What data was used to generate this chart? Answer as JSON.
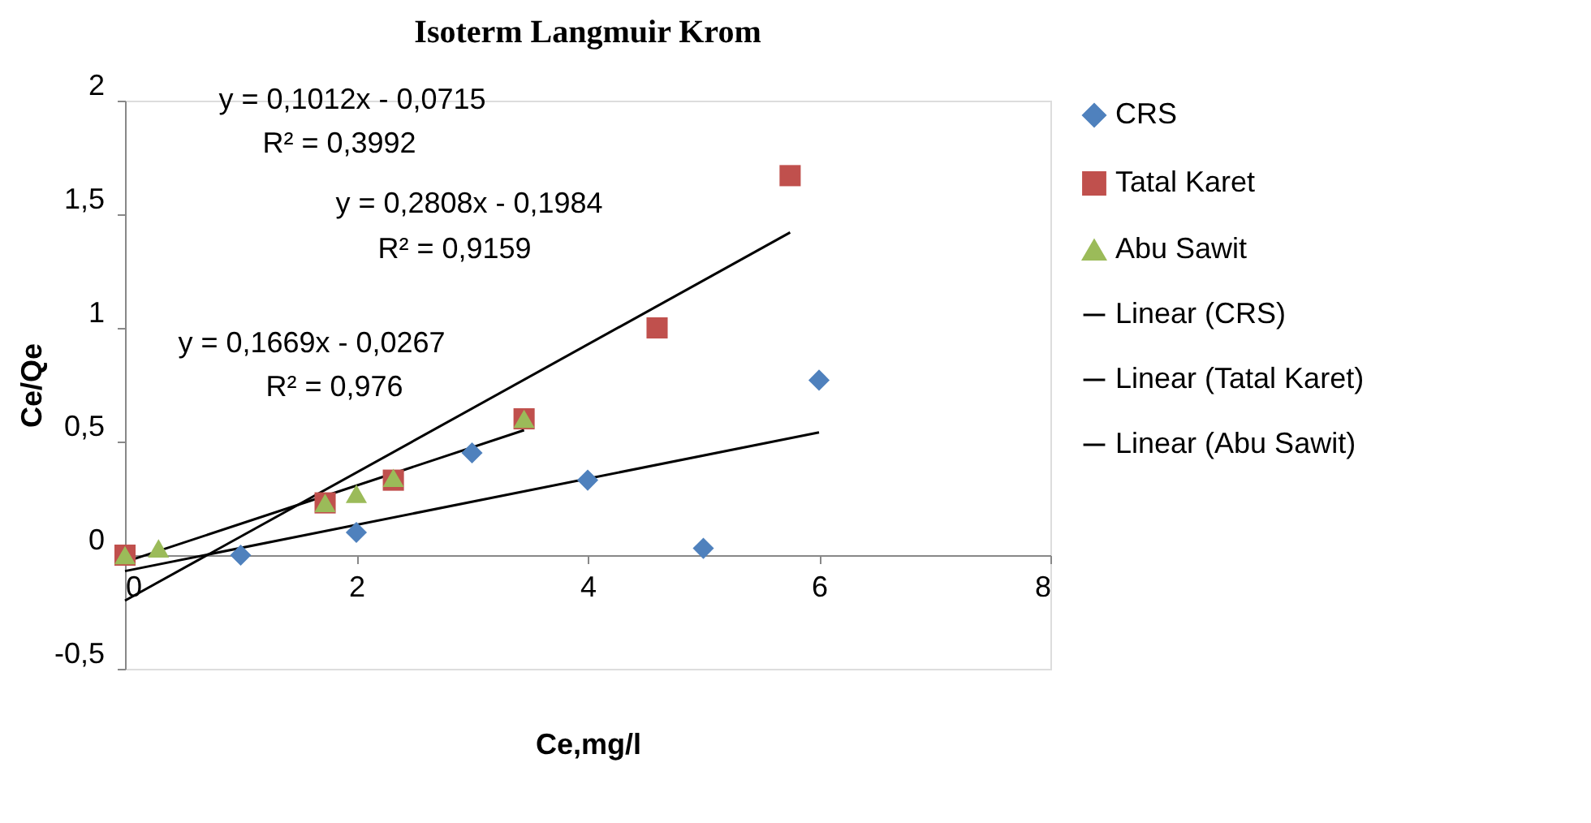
{
  "chart_data": {
    "type": "scatter",
    "title": "Isoterm Langmuir Krom",
    "xlabel": "Ce,mg/l",
    "ylabel": "Ce/Qe",
    "xlim": [
      0,
      8
    ],
    "xticks": [
      0,
      2,
      4,
      6,
      8
    ],
    "ylim": [
      -0.5,
      2
    ],
    "yticks": [
      {
        "value": -0.5,
        "label": "-0,5"
      },
      0,
      {
        "value": 0.5,
        "label": "0,5"
      },
      1,
      {
        "value": 1.5,
        "label": "1,5"
      },
      2
    ],
    "grid": false,
    "legend": "right",
    "annotations": [
      "y = 0,1012x - 0,0715",
      "R² = 0,3992",
      "y = 0,2808x - 0,1984",
      "R² = 0,9159",
      "y = 0,1669x - 0,0267",
      "R² = 0,976"
    ],
    "series": [
      {
        "name": "CRS",
        "marker": "diamond",
        "color": "#4f81bd",
        "x": [
          1,
          2,
          3,
          4,
          5,
          6
        ],
        "values": [
          0,
          0.1,
          0.45,
          0.33,
          0.03,
          0.77
        ]
      },
      {
        "name": "Tatal Karet",
        "marker": "square",
        "color": "#c0504d",
        "x": [
          0,
          1.73,
          2.32,
          3.45,
          4.6,
          5.75
        ],
        "values": [
          0,
          0.23,
          0.33,
          0.6,
          1.0,
          1.67
        ]
      },
      {
        "name": "Abu Sawit",
        "marker": "triangle",
        "color": "#9bbb59",
        "x": [
          0,
          0.29,
          1.73,
          2.0,
          2.32,
          3.45
        ],
        "values": [
          0,
          0.03,
          0.23,
          0.27,
          0.34,
          0.6
        ]
      },
      {
        "name": "Linear (CRS)",
        "type": "line",
        "marker": "none",
        "color": "#000000",
        "x": [
          0,
          6
        ],
        "values": [
          -0.07,
          0.54
        ]
      },
      {
        "name": "Linear (Tatal Karet)",
        "type": "line",
        "marker": "none",
        "color": "#000000",
        "x": [
          0,
          5.75
        ],
        "values": [
          -0.2,
          1.42
        ]
      },
      {
        "name": "Linear (Abu Sawit)",
        "type": "line",
        "marker": "none",
        "color": "#000000",
        "x": [
          0,
          3.45
        ],
        "values": [
          -0.03,
          0.55
        ]
      }
    ]
  }
}
